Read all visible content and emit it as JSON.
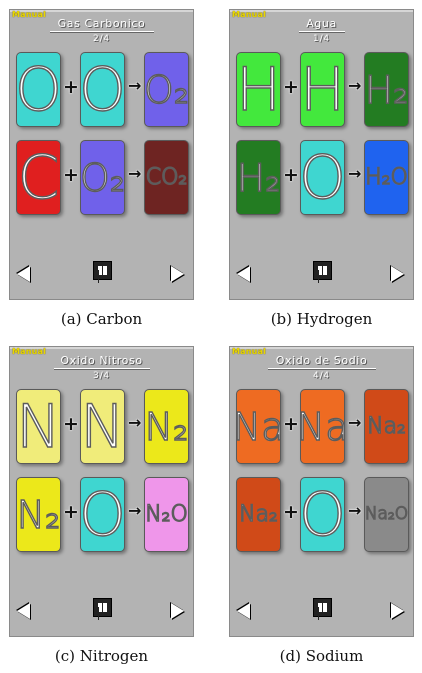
{
  "panels": [
    {
      "badge": "Manual",
      "title": "Gas Carbonico",
      "page": "2/4",
      "tiles": [
        {
          "text": "O",
          "color": "#3fd6d0"
        },
        {
          "text": "O",
          "color": "#3fd6d0"
        },
        {
          "text": "O₂",
          "color": "#7061ea"
        },
        {
          "text": "C",
          "color": "#e01f1f"
        },
        {
          "text": "O₂",
          "color": "#7061ea"
        },
        {
          "text": "CO₂",
          "color": "#6e2422"
        }
      ],
      "caption": "(a) Carbon"
    },
    {
      "badge": "Manual",
      "title": "Agua",
      "page": "1/4",
      "tiles": [
        {
          "text": "H",
          "color": "#43e83d"
        },
        {
          "text": "H",
          "color": "#43e83d"
        },
        {
          "text": "H₂",
          "color": "#237c22"
        },
        {
          "text": "H₂",
          "color": "#237c22"
        },
        {
          "text": "O",
          "color": "#3fd6d0"
        },
        {
          "text": "H₂O",
          "color": "#1f63ef"
        }
      ],
      "caption": "(b) Hydrogen"
    },
    {
      "badge": "Manual",
      "title": "Oxido Nitroso",
      "page": "3/4",
      "tiles": [
        {
          "text": "N",
          "color": "#f0ec7a"
        },
        {
          "text": "N",
          "color": "#f0ec7a"
        },
        {
          "text": "N₂",
          "color": "#ece81a"
        },
        {
          "text": "N₂",
          "color": "#ece81a"
        },
        {
          "text": "O",
          "color": "#3fd6d0"
        },
        {
          "text": "N₂O",
          "color": "#ef96ea"
        }
      ],
      "caption": "(c) Nitrogen"
    },
    {
      "badge": "Manual",
      "title": "Oxido de Sodio",
      "page": "4/4",
      "tiles": [
        {
          "text": "Na",
          "color": "#ee6b22"
        },
        {
          "text": "Na",
          "color": "#ee6b22"
        },
        {
          "text": "Na₂",
          "color": "#d04a18"
        },
        {
          "text": "Na₂",
          "color": "#d04a18"
        },
        {
          "text": "O",
          "color": "#3fd6d0"
        },
        {
          "text": "Na₂O",
          "color": "#8a8a8a"
        }
      ],
      "caption": "(d) Sodium"
    }
  ],
  "operators": {
    "plus": "+",
    "yields": "→"
  }
}
